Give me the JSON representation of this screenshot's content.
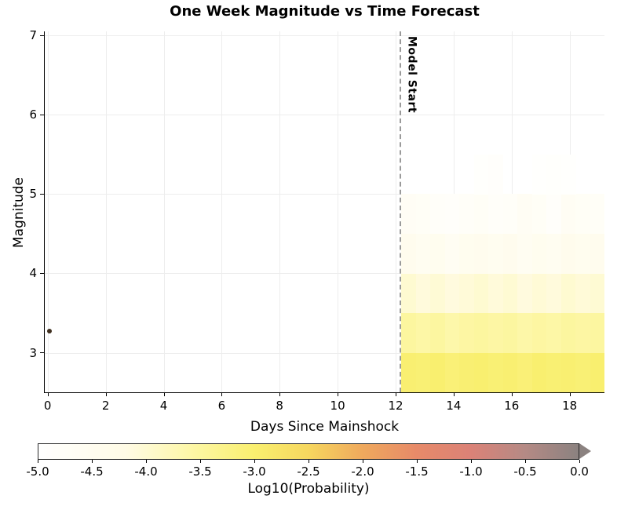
{
  "chart_data": {
    "type": "heatmap",
    "title": "One Week Magnitude vs Time Forecast",
    "xlabel": "Days Since Mainshock",
    "ylabel": "Magnitude",
    "xlim": [
      -0.1,
      19.2
    ],
    "ylim": [
      2.5,
      7.05
    ],
    "xticks": [
      0,
      2,
      4,
      6,
      8,
      10,
      12,
      14,
      16,
      18
    ],
    "yticks": [
      3,
      4,
      5,
      6,
      7
    ],
    "grid": true,
    "grid_color": "#ededed",
    "model_start": {
      "x": 12.15,
      "label": "Model Start",
      "line_color": "#9a9a9a"
    },
    "mainshock": {
      "x": 0.05,
      "magnitude": 3.27,
      "color": "#403020"
    },
    "heatmap": {
      "x_start": 12.2,
      "x_step": 0.5,
      "mag_edges": [
        2.5,
        3.0,
        3.5,
        4.0,
        4.5,
        5.0,
        5.5
      ],
      "values_rows_bottom_to_top": [
        [
          -3.02,
          -3.05,
          -3.0,
          -3.08,
          -3.03,
          -3.0,
          -3.05,
          -3.02,
          -3.08,
          -3.0,
          -3.04,
          -3.02,
          -3.06,
          -3.0
        ],
        [
          -3.5,
          -3.58,
          -3.52,
          -3.62,
          -3.55,
          -3.5,
          -3.56,
          -3.52,
          -3.6,
          -3.54,
          -3.58,
          -3.5,
          -3.55,
          -3.52
        ],
        [
          -4.0,
          -4.1,
          -4.04,
          -4.12,
          -4.06,
          -4.0,
          -4.08,
          -4.02,
          -4.12,
          -4.05,
          -4.1,
          -4.0,
          -4.06,
          -4.02
        ],
        [
          -4.45,
          -4.55,
          -4.5,
          -4.6,
          -4.5,
          -4.44,
          -4.52,
          -4.46,
          -4.58,
          -4.5,
          -4.55,
          -4.42,
          -4.5,
          -4.46
        ],
        [
          -4.68,
          -4.72,
          -4.8,
          -4.85,
          -4.78,
          -4.72,
          -4.82,
          -4.76,
          -4.66,
          -4.72,
          -4.85,
          -4.65,
          -4.7,
          -4.74
        ],
        [
          -5.0,
          -5.0,
          -5.0,
          -5.0,
          -5.0,
          -4.9,
          -4.88,
          -5.0,
          -5.0,
          -4.94,
          -4.9,
          -4.93,
          -5.0,
          -5.0
        ]
      ]
    },
    "colorbar": {
      "label": "Log10(Probability)",
      "min": -5.0,
      "max": 0.0,
      "ticks": [
        -5.0,
        -4.5,
        -4.0,
        -3.5,
        -3.0,
        -2.5,
        -2.0,
        -1.5,
        -1.0,
        -0.5,
        0.0
      ],
      "extend_right": true,
      "stops": [
        {
          "v": -5.0,
          "color": "#ffffff"
        },
        {
          "v": -4.2,
          "color": "#fffbe6"
        },
        {
          "v": -3.6,
          "color": "#fdf7a8"
        },
        {
          "v": -3.0,
          "color": "#f9ef6f"
        },
        {
          "v": -2.5,
          "color": "#f6d75f"
        },
        {
          "v": -2.0,
          "color": "#efa95d"
        },
        {
          "v": -1.5,
          "color": "#e78a69"
        },
        {
          "v": -1.0,
          "color": "#db8277"
        },
        {
          "v": -0.5,
          "color": "#b58a85"
        },
        {
          "v": 0.0,
          "color": "#8b8280"
        }
      ]
    }
  }
}
